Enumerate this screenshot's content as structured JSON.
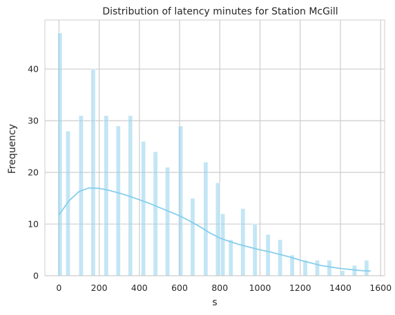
{
  "chart_data": {
    "type": "bar",
    "title": "Distribution of latency minutes for Station McGill",
    "xlabel": "s",
    "ylabel": "Frequency",
    "xlim": [
      -70,
      1620
    ],
    "ylim": [
      0,
      49.5
    ],
    "xticks": [
      0,
      200,
      400,
      600,
      800,
      1000,
      1200,
      1400,
      1600
    ],
    "yticks": [
      0,
      10,
      20,
      30,
      40
    ],
    "grid": true,
    "bar_color": "#87ceeb",
    "kde_color": "#87ceeb",
    "bins": [
      {
        "x": 5,
        "value": 47
      },
      {
        "x": 45,
        "value": 28
      },
      {
        "x": 110,
        "value": 31
      },
      {
        "x": 170,
        "value": 40
      },
      {
        "x": 235,
        "value": 31
      },
      {
        "x": 295,
        "value": 29
      },
      {
        "x": 355,
        "value": 31
      },
      {
        "x": 420,
        "value": 26
      },
      {
        "x": 480,
        "value": 24
      },
      {
        "x": 540,
        "value": 21
      },
      {
        "x": 605,
        "value": 29
      },
      {
        "x": 665,
        "value": 15
      },
      {
        "x": 730,
        "value": 22
      },
      {
        "x": 790,
        "value": 18
      },
      {
        "x": 815,
        "value": 12
      },
      {
        "x": 855,
        "value": 7
      },
      {
        "x": 915,
        "value": 13
      },
      {
        "x": 975,
        "value": 10
      },
      {
        "x": 1040,
        "value": 8
      },
      {
        "x": 1100,
        "value": 7
      },
      {
        "x": 1160,
        "value": 4
      },
      {
        "x": 1225,
        "value": 3
      },
      {
        "x": 1285,
        "value": 3
      },
      {
        "x": 1345,
        "value": 3
      },
      {
        "x": 1410,
        "value": 1
      },
      {
        "x": 1470,
        "value": 2
      },
      {
        "x": 1530,
        "value": 3
      }
    ],
    "bin_width": 22,
    "kde": {
      "x": [
        0,
        50,
        100,
        150,
        200,
        250,
        300,
        350,
        400,
        450,
        500,
        550,
        600,
        650,
        700,
        750,
        800,
        850,
        900,
        950,
        1000,
        1050,
        1100,
        1150,
        1200,
        1250,
        1300,
        1350,
        1400,
        1450,
        1500,
        1550
      ],
      "y": [
        11.8,
        14.5,
        16.3,
        17,
        16.9,
        16.5,
        16,
        15.4,
        14.7,
        14,
        13.2,
        12.4,
        11.6,
        10.6,
        9.5,
        8.3,
        7.3,
        6.6,
        6,
        5.5,
        5,
        4.6,
        4.1,
        3.6,
        3,
        2.5,
        2,
        1.7,
        1.4,
        1.2,
        1,
        0.9
      ]
    }
  }
}
